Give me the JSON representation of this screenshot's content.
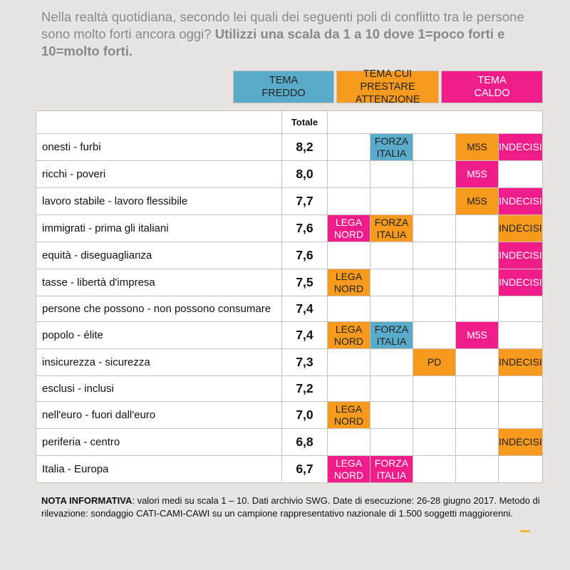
{
  "question": {
    "text": "Nella realtà quotidiana, secondo lei quali dei seguenti poli di conflitto tra le persone sono molto forti ancora oggi?",
    "bold": "Utilizzi una scala da 1 a 10 dove 1=poco forti e 10=molto forti."
  },
  "legend": {
    "cold": {
      "line1": "TEMA",
      "line2": "FREDDO",
      "color": "#5aabc9"
    },
    "attention": {
      "line1": "TEMA CUI PRESTARE",
      "line2": "ATTENZIONE",
      "color": "#f79a1e"
    },
    "hot": {
      "line1": "TEMA",
      "line2": "CALDO",
      "color": "#ef1c8a"
    }
  },
  "table": {
    "total_header": "Totale",
    "rows": [
      {
        "label": "onesti - furbi",
        "total": "8,2",
        "cells": [
          {
            "t": "",
            "c": ""
          },
          {
            "t": "FORZA ITALIA",
            "c": "cold"
          },
          {
            "t": "",
            "c": ""
          },
          {
            "t": "M5S",
            "c": "att"
          },
          {
            "t": "INDECISI",
            "c": "hot"
          }
        ]
      },
      {
        "label": "ricchi - poveri",
        "total": "8,0",
        "cells": [
          {
            "t": "",
            "c": ""
          },
          {
            "t": "",
            "c": ""
          },
          {
            "t": "",
            "c": ""
          },
          {
            "t": "M5S",
            "c": "hot"
          },
          {
            "t": "",
            "c": ""
          }
        ]
      },
      {
        "label": "lavoro stabile - lavoro flessibile",
        "total": "7,7",
        "cells": [
          {
            "t": "",
            "c": ""
          },
          {
            "t": "",
            "c": ""
          },
          {
            "t": "",
            "c": ""
          },
          {
            "t": "M5S",
            "c": "att"
          },
          {
            "t": "INDECISI",
            "c": "hot"
          }
        ]
      },
      {
        "label": "immigrati - prima gli italiani",
        "total": "7,6",
        "cells": [
          {
            "t": "LEGA NORD",
            "c": "hot"
          },
          {
            "t": "FORZA ITALIA",
            "c": "att"
          },
          {
            "t": "",
            "c": ""
          },
          {
            "t": "",
            "c": ""
          },
          {
            "t": "INDECISI",
            "c": "att"
          }
        ]
      },
      {
        "label": "equità - diseguaglianza",
        "total": "7,6",
        "cells": [
          {
            "t": "",
            "c": ""
          },
          {
            "t": "",
            "c": ""
          },
          {
            "t": "",
            "c": ""
          },
          {
            "t": "",
            "c": ""
          },
          {
            "t": "INDECISI",
            "c": "hot"
          }
        ]
      },
      {
        "label": "tasse - libertà d'impresa",
        "total": "7,5",
        "cells": [
          {
            "t": "LEGA NORD",
            "c": "att"
          },
          {
            "t": "",
            "c": ""
          },
          {
            "t": "",
            "c": ""
          },
          {
            "t": "",
            "c": ""
          },
          {
            "t": "INDECISI",
            "c": "hot"
          }
        ]
      },
      {
        "label": "persone che possono - non possono consumare",
        "total": "7,4",
        "cells": [
          {
            "t": "",
            "c": ""
          },
          {
            "t": "",
            "c": ""
          },
          {
            "t": "",
            "c": ""
          },
          {
            "t": "",
            "c": ""
          },
          {
            "t": "",
            "c": ""
          }
        ]
      },
      {
        "label": "popolo - élite",
        "total": "7,4",
        "cells": [
          {
            "t": "LEGA NORD",
            "c": "att"
          },
          {
            "t": "FORZA ITALIA",
            "c": "cold"
          },
          {
            "t": "",
            "c": ""
          },
          {
            "t": "M5S",
            "c": "hot"
          },
          {
            "t": "",
            "c": ""
          }
        ]
      },
      {
        "label": "insicurezza - sicurezza",
        "total": "7,3",
        "cells": [
          {
            "t": "",
            "c": ""
          },
          {
            "t": "",
            "c": ""
          },
          {
            "t": "PD",
            "c": "att"
          },
          {
            "t": "",
            "c": ""
          },
          {
            "t": "INDECISI",
            "c": "att"
          }
        ]
      },
      {
        "label": "esclusi - inclusi",
        "total": "7,2",
        "cells": [
          {
            "t": "",
            "c": ""
          },
          {
            "t": "",
            "c": ""
          },
          {
            "t": "",
            "c": ""
          },
          {
            "t": "",
            "c": ""
          },
          {
            "t": "",
            "c": ""
          }
        ]
      },
      {
        "label": "nell'euro - fuori dall'euro",
        "total": "7,0",
        "cells": [
          {
            "t": "LEGA NORD",
            "c": "att"
          },
          {
            "t": "",
            "c": ""
          },
          {
            "t": "",
            "c": ""
          },
          {
            "t": "",
            "c": ""
          },
          {
            "t": "",
            "c": ""
          }
        ]
      },
      {
        "label": "periferia - centro",
        "total": "6,8",
        "cells": [
          {
            "t": "",
            "c": ""
          },
          {
            "t": "",
            "c": ""
          },
          {
            "t": "",
            "c": ""
          },
          {
            "t": "",
            "c": ""
          },
          {
            "t": "INDECISI",
            "c": "att"
          }
        ]
      },
      {
        "label": "Italia - Europa",
        "total": "6,7",
        "cells": [
          {
            "t": "LEGA NORD",
            "c": "hot"
          },
          {
            "t": "FORZA ITALIA",
            "c": "hot"
          },
          {
            "t": "",
            "c": ""
          },
          {
            "t": "",
            "c": ""
          },
          {
            "t": "",
            "c": ""
          }
        ]
      }
    ]
  },
  "note": {
    "bold": "NOTA INFORMATIVA",
    "text": ": valori medi su scala 1 – 10. Dati archivio SWG. Date di esecuzione: 26-28 giugno 2017. Metodo di rilevazione: sondaggio CATI-CAMI-CAWI su un campione rappresentativo nazionale di 1.500 soggetti maggiorenni."
  }
}
